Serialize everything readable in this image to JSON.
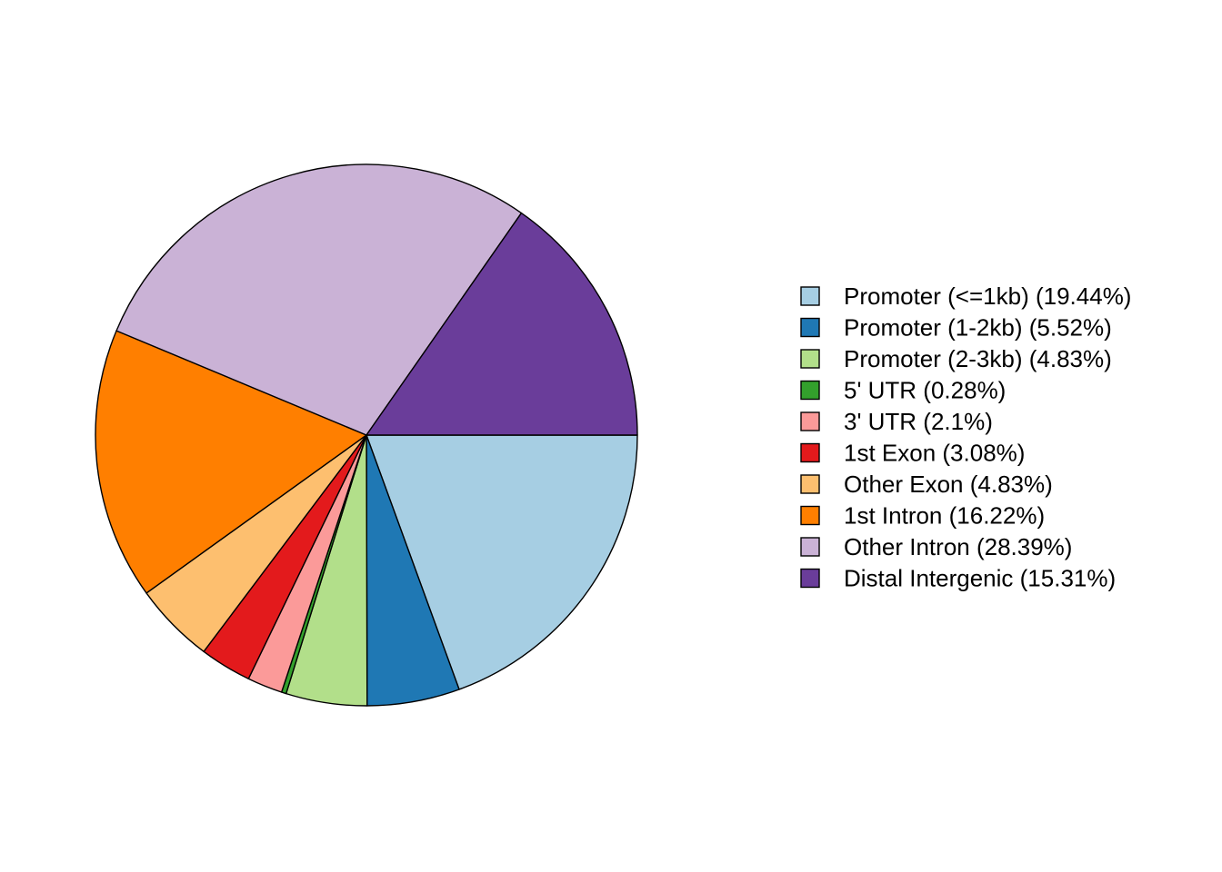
{
  "chart_data": {
    "type": "pie",
    "title": "",
    "start_angle_deg": 0,
    "direction": "clockwise",
    "legend_position": "right",
    "slices": [
      {
        "label": "Promoter (<=1kb) (19.44%)",
        "value": 19.44,
        "color": "#A6CEE3"
      },
      {
        "label": "Promoter (1-2kb) (5.52%)",
        "value": 5.52,
        "color": "#1F78B4"
      },
      {
        "label": "Promoter (2-3kb) (4.83%)",
        "value": 4.83,
        "color": "#B2DF8A"
      },
      {
        "label": "5' UTR (0.28%)",
        "value": 0.28,
        "color": "#33A02C"
      },
      {
        "label": "3' UTR (2.1%)",
        "value": 2.1,
        "color": "#FB9A99"
      },
      {
        "label": "1st Exon (3.08%)",
        "value": 3.08,
        "color": "#E31A1C"
      },
      {
        "label": "Other Exon (4.83%)",
        "value": 4.83,
        "color": "#FDBF6F"
      },
      {
        "label": "1st Intron (16.22%)",
        "value": 16.22,
        "color": "#FF7F00"
      },
      {
        "label": "Other Intron (28.39%)",
        "value": 28.39,
        "color": "#CAB2D6"
      },
      {
        "label": "Distal Intergenic (15.31%)",
        "value": 15.31,
        "color": "#6A3D9A"
      }
    ]
  }
}
